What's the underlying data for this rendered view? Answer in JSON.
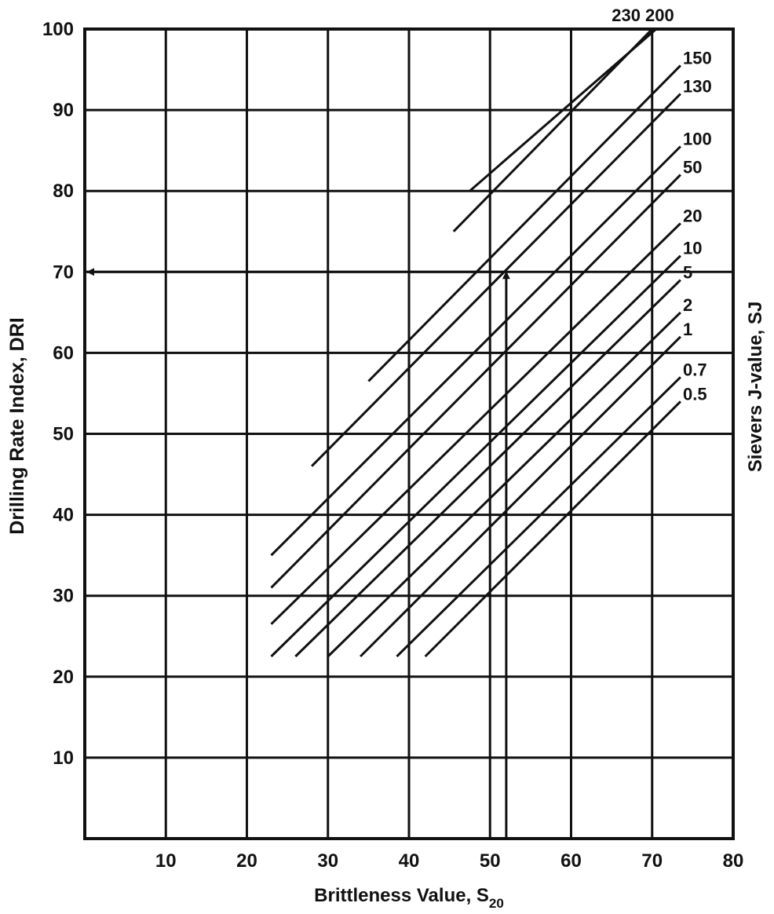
{
  "chart_data": {
    "type": "line",
    "xlabel": "Brittleness Value, S",
    "xlabel_subscript": "20",
    "ylabel": "Drilling Rate Index, DRI",
    "ylabel_right": "Sievers J-value, SJ",
    "xlim": [
      0,
      80
    ],
    "ylim": [
      0,
      100
    ],
    "grid": true,
    "x_ticks": [
      "10",
      "20",
      "30",
      "40",
      "50",
      "60",
      "70",
      "80"
    ],
    "y_ticks": [
      "10",
      "20",
      "30",
      "40",
      "50",
      "60",
      "70",
      "80",
      "90",
      "100"
    ],
    "series": [
      {
        "name": "230",
        "points": [
          [
            47.5,
            80
          ],
          [
            70.5,
            100
          ]
        ]
      },
      {
        "name": "200",
        "points": [
          [
            45.5,
            75
          ],
          [
            70,
            100
          ]
        ]
      },
      {
        "name": "150",
        "points": [
          [
            35,
            56.5
          ],
          [
            73.5,
            95.5
          ]
        ]
      },
      {
        "name": "130",
        "points": [
          [
            28,
            46
          ],
          [
            73.5,
            92
          ]
        ]
      },
      {
        "name": "100",
        "points": [
          [
            23,
            35
          ],
          [
            73.5,
            85.5
          ]
        ]
      },
      {
        "name": "50",
        "points": [
          [
            23,
            31
          ],
          [
            73.5,
            82
          ]
        ]
      },
      {
        "name": "20",
        "points": [
          [
            23,
            26.5
          ],
          [
            73.5,
            76
          ]
        ]
      },
      {
        "name": "10",
        "points": [
          [
            23,
            22.5
          ],
          [
            73.5,
            72
          ]
        ]
      },
      {
        "name": "5",
        "points": [
          [
            26,
            22.5
          ],
          [
            73.5,
            69
          ]
        ]
      },
      {
        "name": "2",
        "points": [
          [
            30,
            22.5
          ],
          [
            73.5,
            65
          ]
        ]
      },
      {
        "name": "1",
        "points": [
          [
            34,
            22.5
          ],
          [
            73.5,
            62
          ]
        ]
      },
      {
        "name": "0.7",
        "points": [
          [
            38.5,
            22.5
          ],
          [
            73.5,
            57
          ]
        ]
      },
      {
        "name": "0.5",
        "points": [
          [
            42,
            22.5
          ],
          [
            73.5,
            54
          ]
        ]
      }
    ],
    "labels": [
      {
        "text": "230 200",
        "x": 70,
        "y": 100,
        "anchor": "end"
      },
      {
        "text": "150",
        "x": 74,
        "y": 95.5
      },
      {
        "text": "130",
        "x": 74,
        "y": 92
      },
      {
        "text": "100",
        "x": 74,
        "y": 85.5
      },
      {
        "text": "50",
        "x": 74,
        "y": 82
      },
      {
        "text": "20",
        "x": 74,
        "y": 76
      },
      {
        "text": "10",
        "x": 74,
        "y": 72
      },
      {
        "text": "5",
        "x": 74,
        "y": 69
      },
      {
        "text": "2",
        "x": 74,
        "y": 65
      },
      {
        "text": "1",
        "x": 74,
        "y": 62
      },
      {
        "text": "0.7",
        "x": 74,
        "y": 57
      },
      {
        "text": "0.5",
        "x": 74,
        "y": 54
      }
    ],
    "example_reading": {
      "brittleness_value": 52,
      "dri": 70
    }
  }
}
